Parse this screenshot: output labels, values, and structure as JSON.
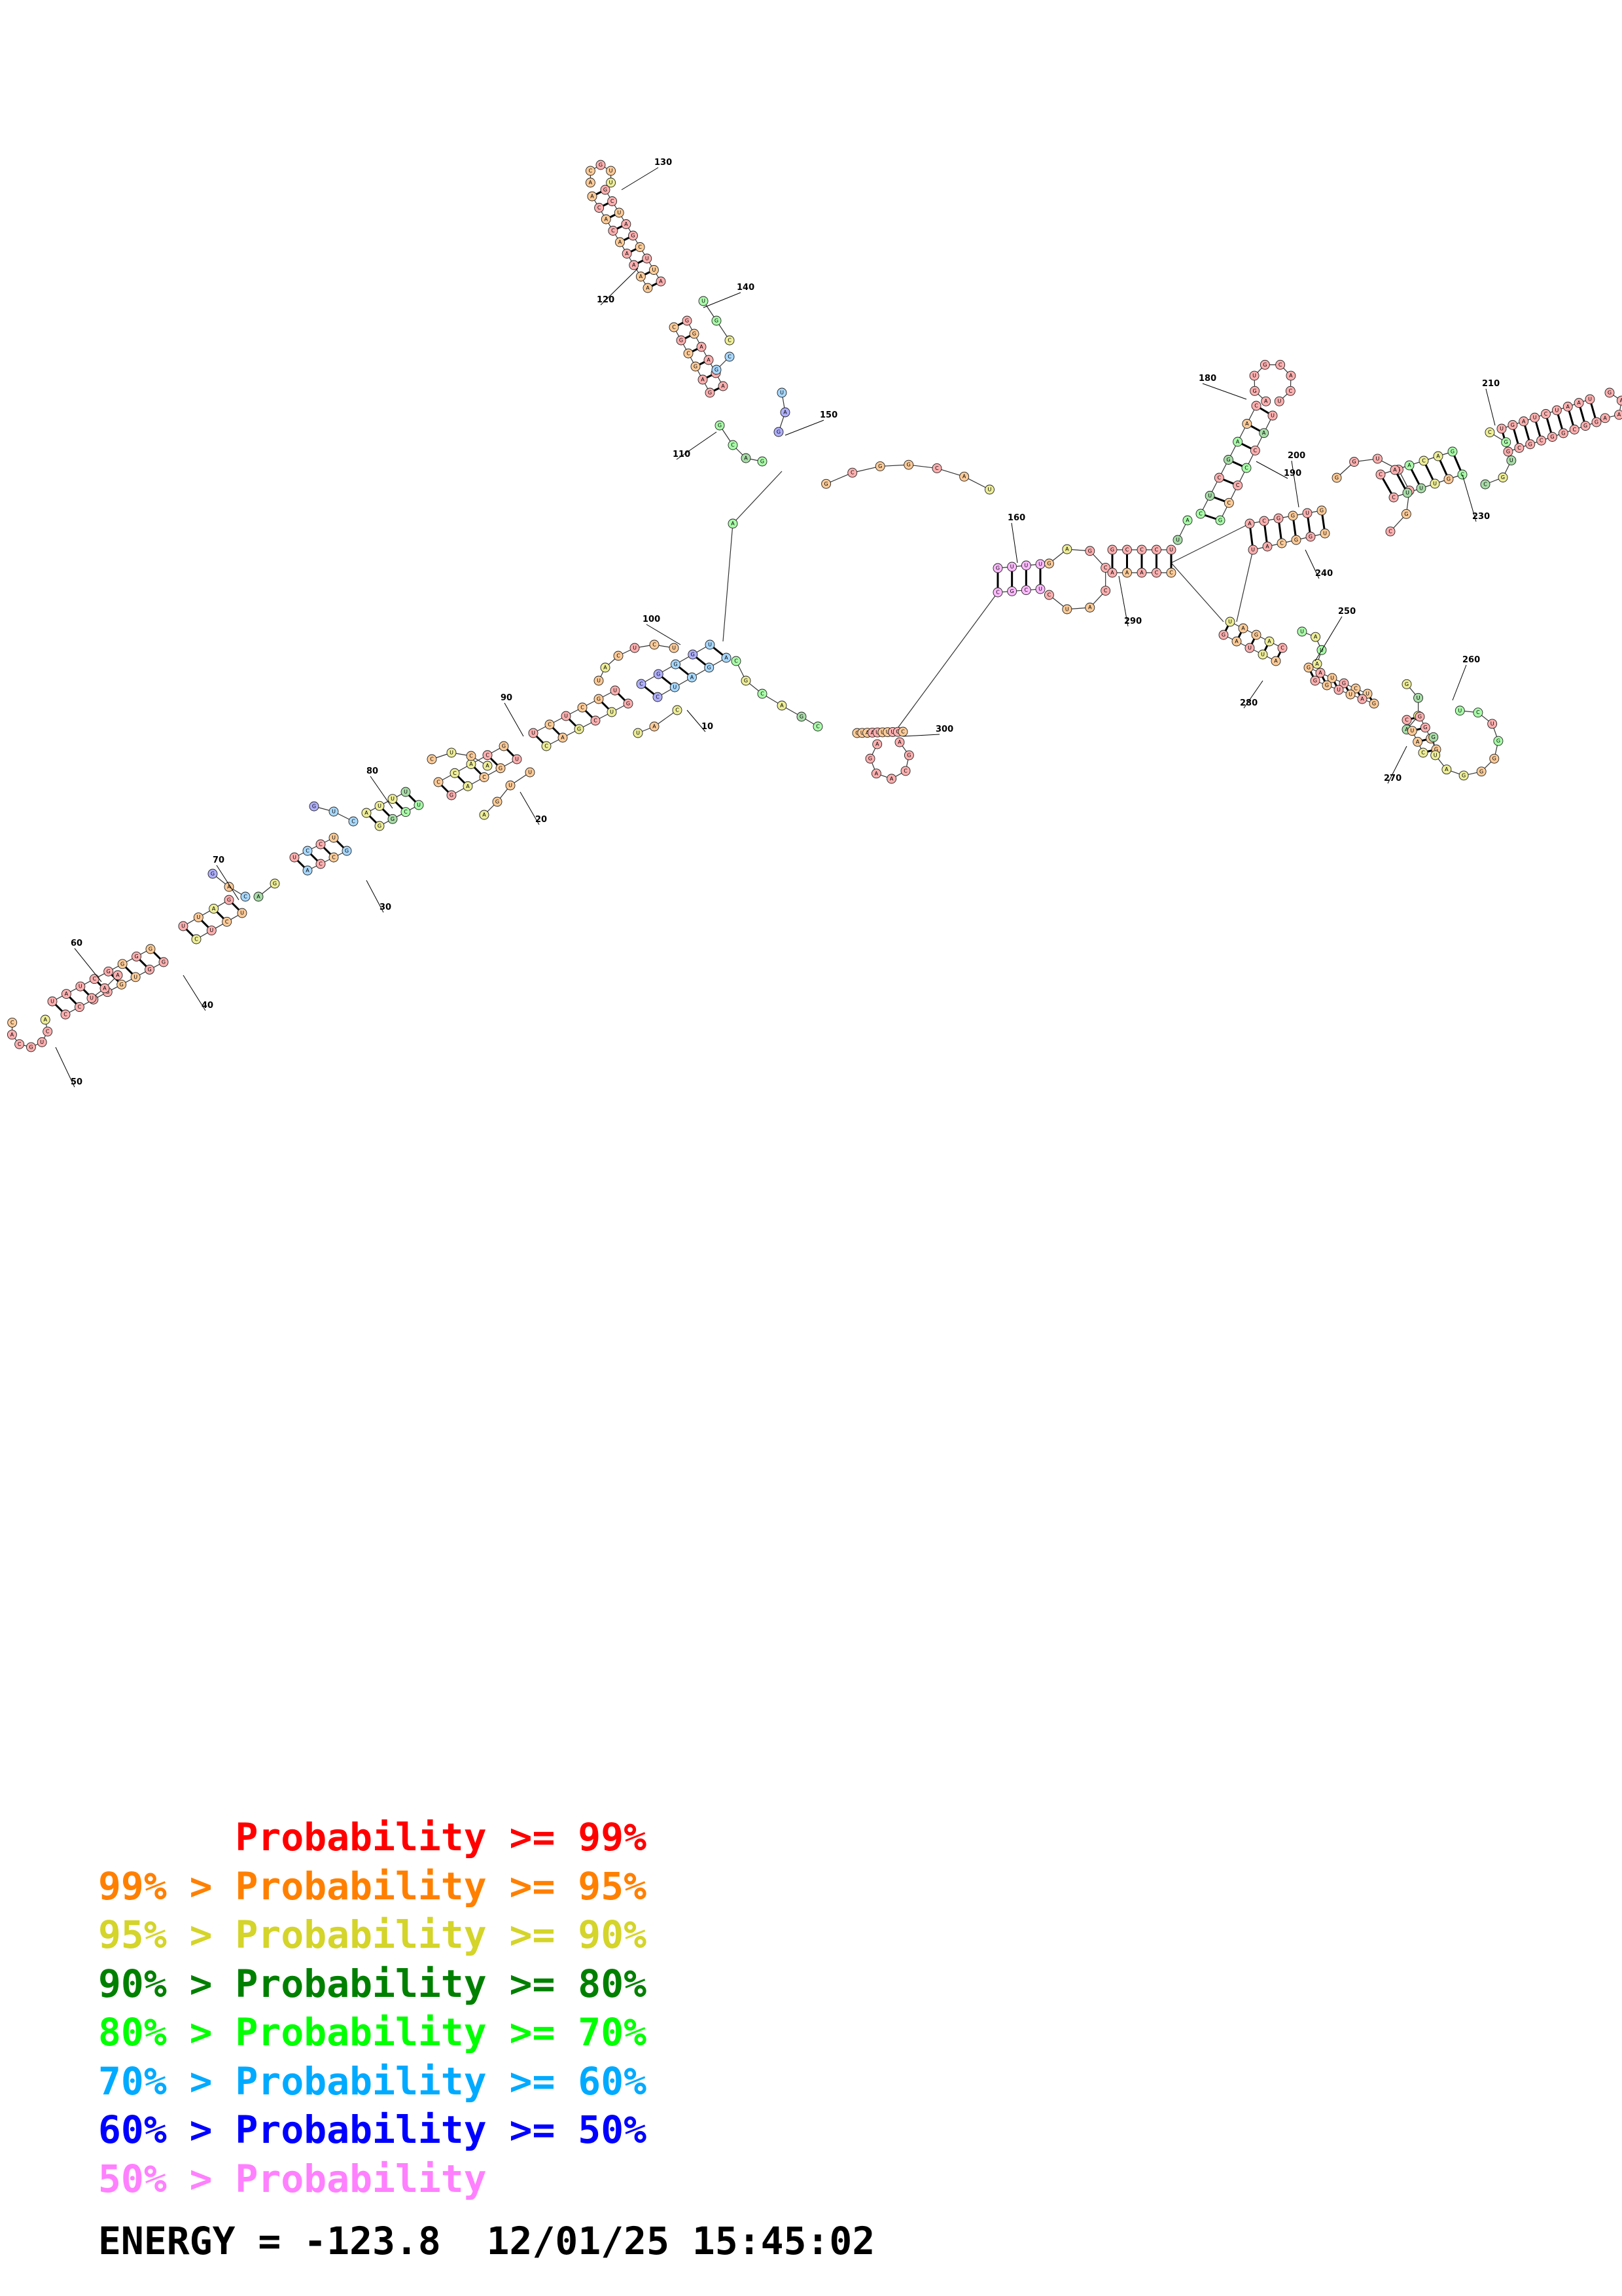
{
  "legend": [
    {
      "prefix": "",
      "label": "Probability >= 99%",
      "color": "#ff0000"
    },
    {
      "prefix": "99% > ",
      "label": "Probability >= 95%",
      "color": "#ff8000"
    },
    {
      "prefix": "95% > ",
      "label": "Probability >= 90%",
      "color": "#d4d42a"
    },
    {
      "prefix": "90% > ",
      "label": "Probability >= 80%",
      "color": "#008000"
    },
    {
      "prefix": "80% > ",
      "label": "Probability >= 70%",
      "color": "#00ff00"
    },
    {
      "prefix": "70% > ",
      "label": "Probability >= 60%",
      "color": "#00aaff"
    },
    {
      "prefix": "60% > ",
      "label": "Probability >= 50%",
      "color": "#0000ff"
    },
    {
      "prefix": "50% > ",
      "label": "Probability",
      "color": "#ff80ff"
    }
  ],
  "energy": {
    "label": "ENERGY = ",
    "value": "-123.8",
    "timestamp": "12/01/25 15:45:02"
  },
  "position_labels": [
    "10",
    "20",
    "30",
    "40",
    "50",
    "60",
    "70",
    "80",
    "90",
    "100",
    "110",
    "120",
    "130",
    "140",
    "150",
    "160",
    "180",
    "190",
    "200",
    "210",
    "230",
    "240",
    "250",
    "260",
    "270",
    "280",
    "290",
    "300"
  ],
  "fill_colors": {
    "red": "#ffb0b0",
    "orange": "#ffcc99",
    "yellow": "#eeee99",
    "dgreen": "#a8dca8",
    "lgreen": "#aaffaa",
    "lblue": "#a8d8ff",
    "blue": "#b0b0ff",
    "pink": "#ffbbff"
  }
}
